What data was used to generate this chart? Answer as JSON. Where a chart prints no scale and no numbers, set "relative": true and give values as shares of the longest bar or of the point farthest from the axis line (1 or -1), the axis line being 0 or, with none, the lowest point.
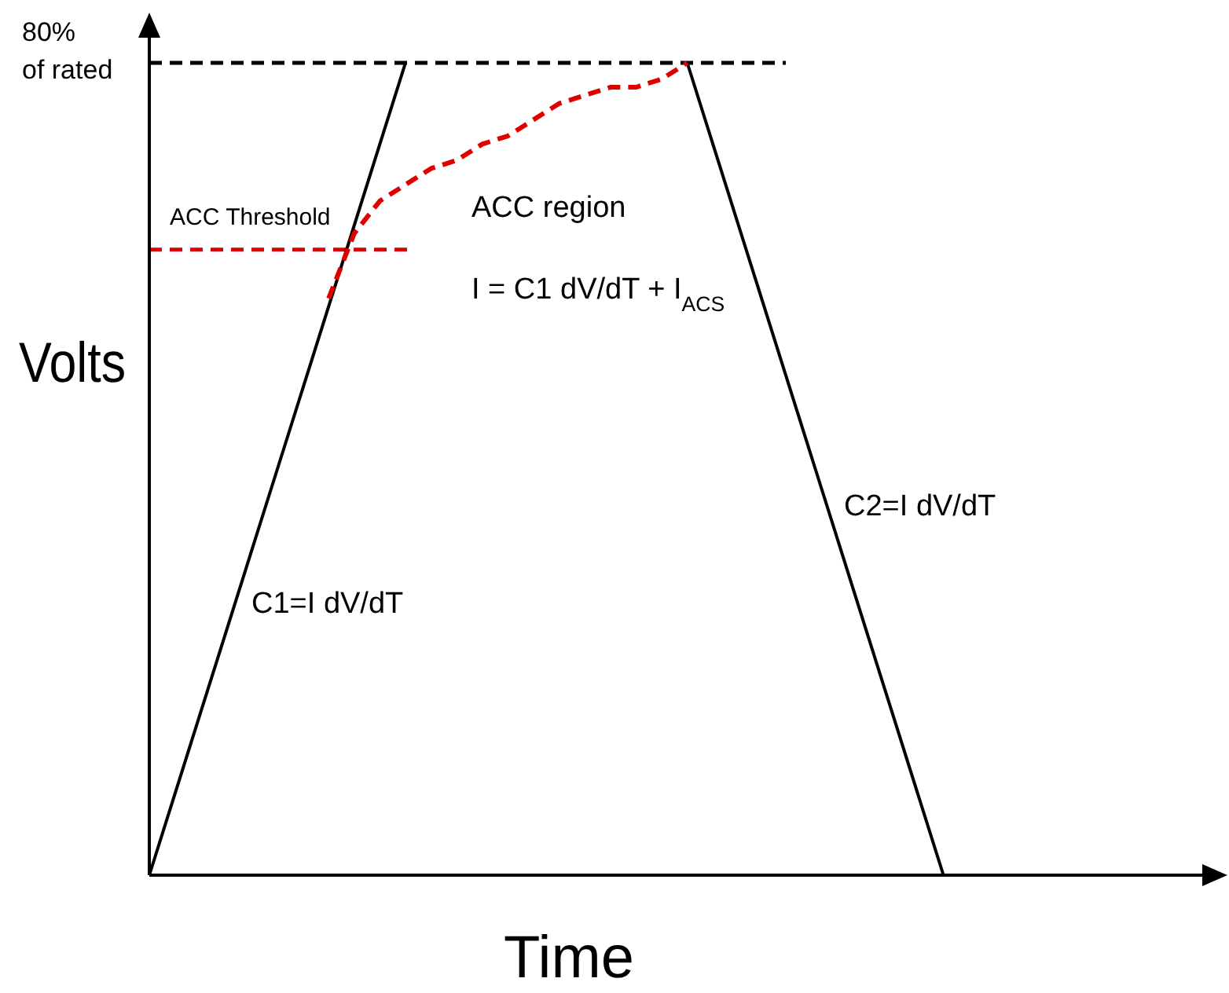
{
  "chart_data": {
    "type": "line",
    "relative": true,
    "xlabel": "Time",
    "ylabel": "Volts",
    "categories": [
      null,
      null,
      null,
      null,
      null,
      null,
      null,
      null,
      null,
      null,
      null,
      null,
      null,
      null,
      null,
      null,
      null,
      null,
      null,
      null,
      null,
      null,
      null,
      null,
      null,
      null,
      null,
      null,
      null,
      null,
      null,
      null,
      null,
      null,
      null,
      null,
      null,
      null,
      null,
      null,
      null,
      null,
      null
    ],
    "series": [
      {
        "color": "#000000",
        "line_style": "solid",
        "values": [
          0,
          0.1,
          0.2,
          0.3,
          0.4,
          0.5,
          0.6,
          0.7,
          0.8,
          0.9,
          1,
          null,
          null,
          null,
          null,
          null,
          null,
          null,
          null,
          null,
          null,
          null,
          null,
          null,
          null,
          null,
          null,
          null,
          null,
          null,
          null,
          null,
          null,
          null,
          null,
          null,
          null,
          null,
          null,
          null,
          null,
          null,
          null
        ]
      },
      {
        "color": "#000000",
        "line_style": "solid",
        "values": [
          null,
          null,
          null,
          null,
          null,
          null,
          null,
          null,
          null,
          null,
          null,
          null,
          null,
          null,
          null,
          null,
          null,
          null,
          null,
          null,
          null,
          1,
          0.9,
          0.8,
          0.7,
          0.6,
          0.5,
          0.4,
          0.3,
          0.2,
          0.1,
          0,
          null,
          null,
          null,
          null,
          null,
          null,
          null,
          null,
          null,
          null,
          null
        ]
      },
      {
        "color": "#e00000",
        "line_style": "dashed",
        "values": [
          null,
          null,
          null,
          null,
          null,
          null,
          null,
          0.71,
          0.79,
          0.83,
          0.85,
          0.87,
          0.88,
          0.9,
          0.91,
          0.93,
          0.95,
          0.96,
          0.97,
          0.97,
          0.98,
          1,
          null,
          null,
          null,
          null,
          null,
          null,
          null,
          null,
          null,
          null,
          null,
          null,
          null,
          null,
          null,
          null,
          null,
          null,
          null,
          null,
          null
        ]
      }
    ],
    "ref_lines": [
      {
        "axis": "y",
        "value": 1,
        "label": "80% of rated",
        "color": "#000000",
        "line_style": "dashed"
      },
      {
        "axis": "y",
        "value": 0.77,
        "label": "ACC Threshold",
        "color": "#e00000",
        "line_style": "dashed"
      }
    ],
    "annotations": [
      "ACC region",
      "I = C1 dV/dT + I$_{ACS}$",
      "C1=I dV/dT",
      "C2=I dV/dT"
    ]
  }
}
